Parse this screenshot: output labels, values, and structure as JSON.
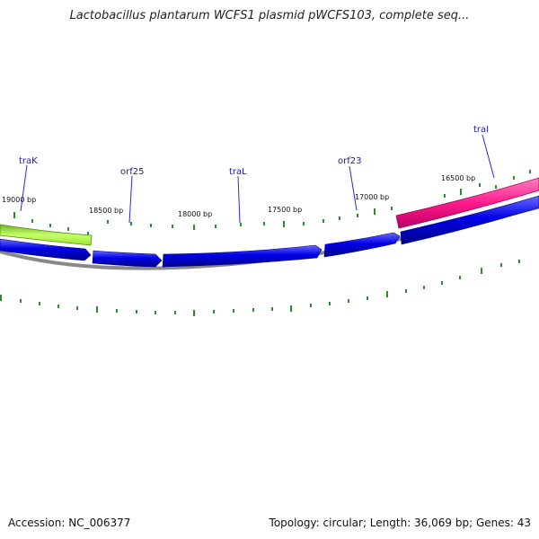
{
  "title": "Lactobacillus plantarum WCFS1 plasmid pWCFS103, complete seq...",
  "footer": {
    "accession": "Accession: NC_006377",
    "summary": "Topology: circular; Length: 36,069 bp; Genes: 43"
  },
  "colors": {
    "gene_forward": "#1010e0",
    "gene_highlight": "#ff1a8c",
    "gene_green": "#99ee33",
    "backbone": "#888888",
    "ticks": "#2e8b2e",
    "label": "#1a1aa0",
    "callout": "#2a2ae0"
  },
  "genes": [
    {
      "name": "traK",
      "color": "green"
    },
    {
      "name": "orf25",
      "color": "blue"
    },
    {
      "name": "traL",
      "color": "blue"
    },
    {
      "name": "orf23",
      "color": "blue"
    },
    {
      "name": "traI",
      "color": "pink"
    }
  ],
  "bp_labels": [
    "19000 bp",
    "18500 bp",
    "18000 bp",
    "17500 bp",
    "17000 bp",
    "16500 bp"
  ]
}
